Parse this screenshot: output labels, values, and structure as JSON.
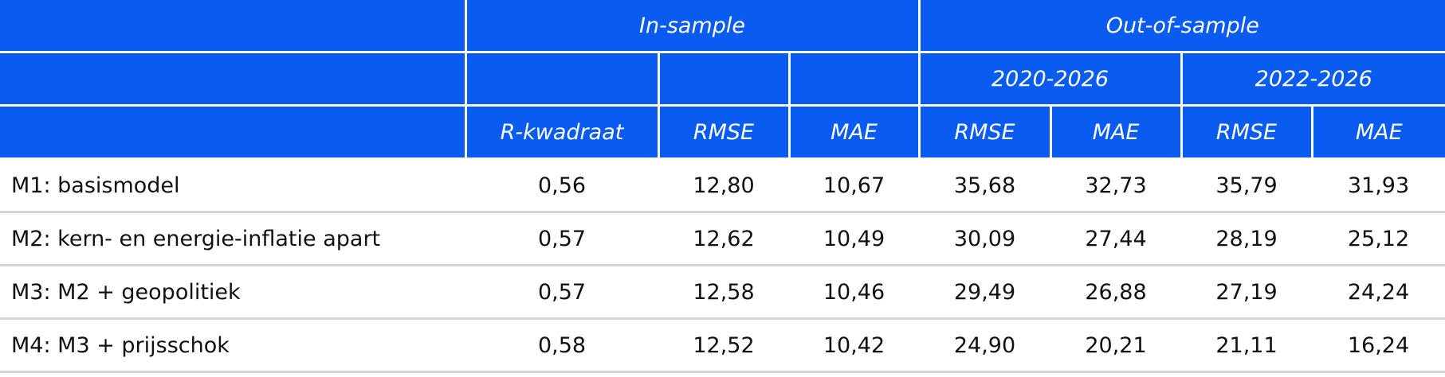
{
  "header": {
    "group_row": [
      "In-sample",
      "Out-of-sample"
    ],
    "period_row": [
      "2020-2026",
      "2022-2026"
    ],
    "metric_row": [
      "R-kwadraat",
      "RMSE",
      "MAE",
      "RMSE",
      "MAE",
      "RMSE",
      "MAE"
    ]
  },
  "table": {
    "rows": [
      [
        "M1: basismodel",
        "0,56",
        "12,80",
        "10,67",
        "35,68",
        "32,73",
        "35,79",
        "31,93"
      ],
      [
        "M2: kern- en energie-inflatie apart",
        "0,57",
        "12,62",
        "10,49",
        "30,09",
        "27,44",
        "28,19",
        "25,12"
      ],
      [
        "M3: M2 + geopolitiek",
        "0,57",
        "12,58",
        "10,46",
        "29,49",
        "26,88",
        "27,19",
        "24,24"
      ],
      [
        "M4: M3 + prijsschok",
        "0,58",
        "12,52",
        "10,42",
        "24,90",
        "20,21",
        "21,11",
        "16,24"
      ]
    ]
  }
}
